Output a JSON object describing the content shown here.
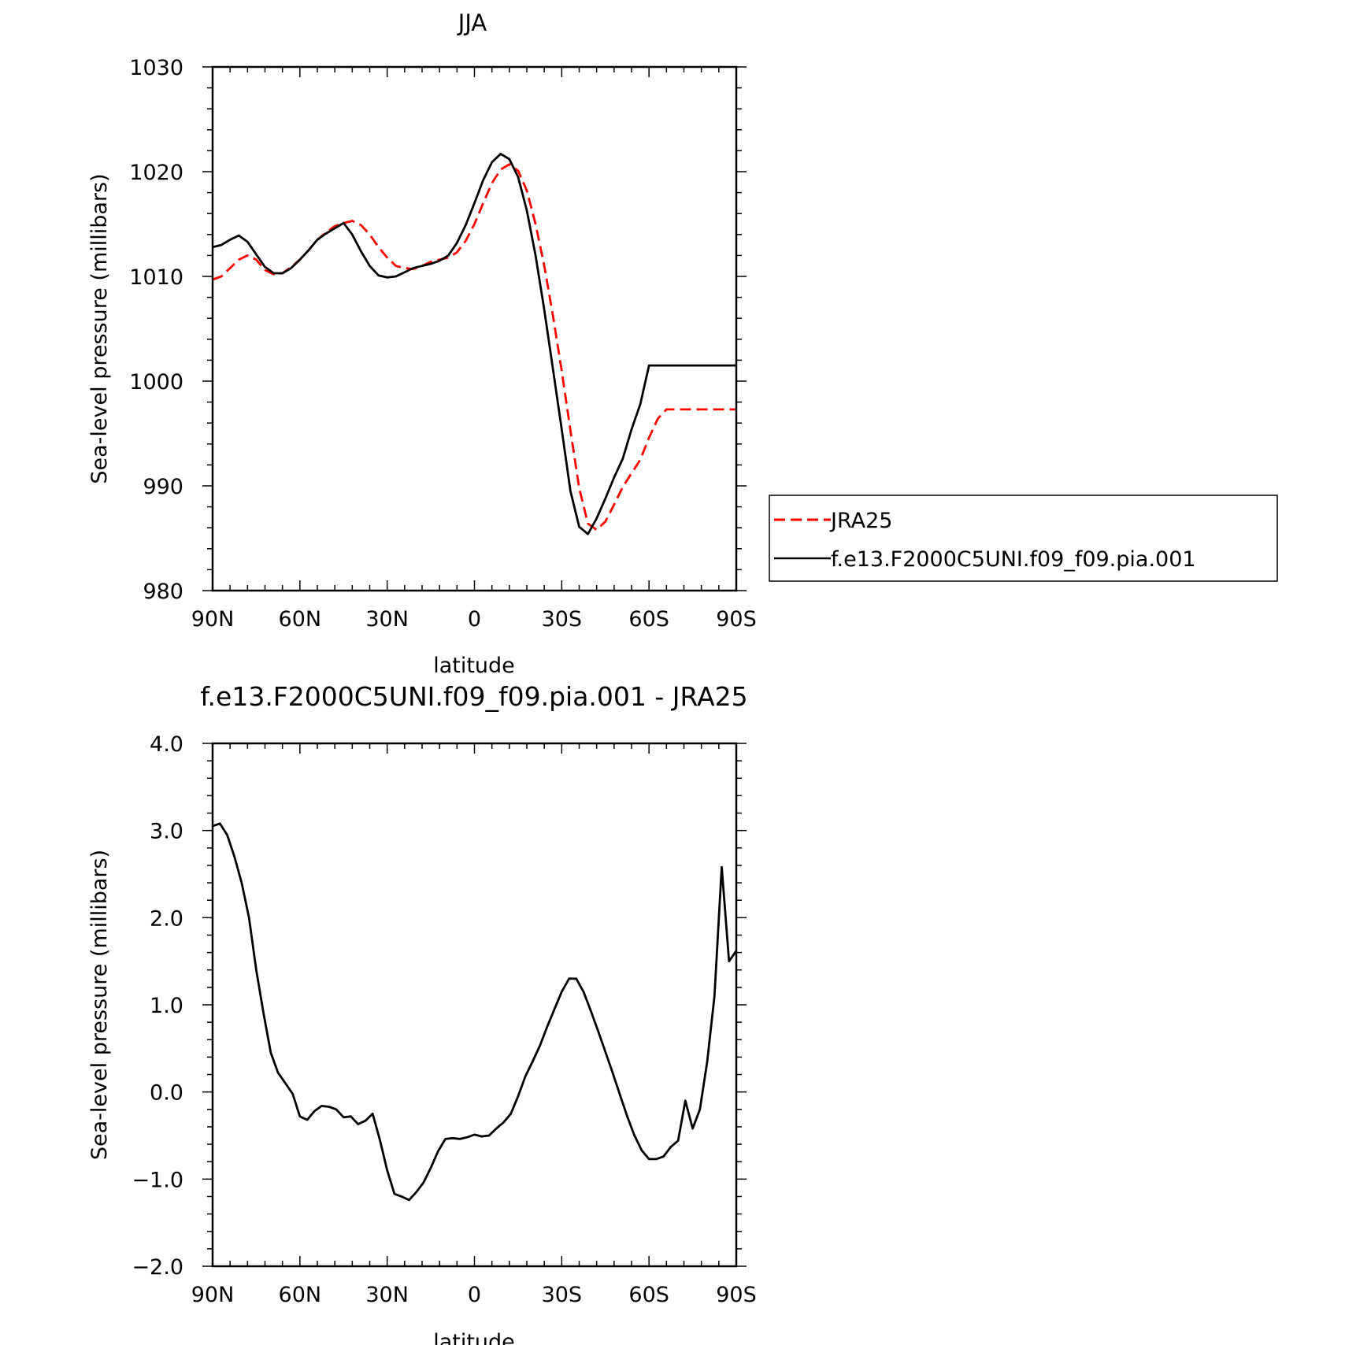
{
  "chart_data": [
    {
      "type": "line",
      "title": "JJA",
      "xlabel": "latitude",
      "ylabel": "Sea-level pressure (millibars)",
      "x_tick_labels": [
        "90N",
        "60N",
        "30N",
        "0",
        "30S",
        "60S",
        "90S"
      ],
      "x_tick_values": [
        90,
        60,
        30,
        0,
        -30,
        -60,
        -90
      ],
      "xlim": [
        90,
        -90
      ],
      "y_tick_labels": [
        "980",
        "990",
        "1000",
        "1010",
        "1020",
        "1030"
      ],
      "y_tick_values": [
        980,
        990,
        1000,
        1010,
        1020,
        1030
      ],
      "ylim": [
        980,
        1030
      ],
      "legend_position": "right",
      "series": [
        {
          "name": "JRA25",
          "color": "#ff0000",
          "dash": "dashed",
          "x": [
            90,
            87,
            84,
            81,
            78,
            75,
            72,
            69,
            66,
            63,
            60,
            57,
            54,
            51,
            48,
            45,
            42,
            39,
            36,
            33,
            30,
            27,
            24,
            21,
            18,
            15,
            12,
            9,
            6,
            3,
            0,
            -3,
            -6,
            -9,
            -12,
            -15,
            -18,
            -21,
            -24,
            -27,
            -30,
            -33,
            -36,
            -39,
            -42,
            -45,
            -48,
            -51,
            -54,
            -57,
            -60,
            -63,
            -66,
            -69,
            -72,
            -75,
            -78,
            -81,
            -84,
            -87,
            -90
          ],
          "y": [
            1009.7,
            1010.0,
            1010.8,
            1011.6,
            1012.0,
            1011.6,
            1010.6,
            1010.2,
            1010.3,
            1010.9,
            1011.6,
            1012.5,
            1013.5,
            1014.2,
            1014.8,
            1015.1,
            1015.3,
            1014.9,
            1014.0,
            1012.8,
            1011.8,
            1011.0,
            1010.8,
            1010.7,
            1011.0,
            1011.4,
            1011.6,
            1011.8,
            1012.3,
            1013.4,
            1015.0,
            1017.0,
            1018.9,
            1020.2,
            1020.7,
            1020.1,
            1018.2,
            1015.0,
            1011.0,
            1006.2,
            1001.0,
            995.3,
            989.8,
            986.4,
            985.8,
            986.6,
            988.2,
            989.9,
            991.2,
            992.5,
            994.6,
            996.4,
            997.3,
            997.3,
            997.3,
            997.3,
            997.3,
            997.3,
            997.3,
            997.3,
            997.3
          ]
        },
        {
          "name": "f.e13.F2000C5UNI.f09_f09.pia.001",
          "color": "#000000",
          "dash": "solid",
          "x": [
            90,
            87,
            84,
            81,
            78,
            75,
            72,
            69,
            66,
            63,
            60,
            57,
            54,
            51,
            48,
            45,
            42,
            39,
            36,
            33,
            30,
            27,
            24,
            21,
            18,
            15,
            12,
            9,
            6,
            3,
            0,
            -3,
            -6,
            -9,
            -12,
            -15,
            -18,
            -21,
            -24,
            -27,
            -30,
            -33,
            -36,
            -39,
            -42,
            -45,
            -48,
            -51,
            -54,
            -57,
            -60,
            -63,
            -66,
            -69,
            -72,
            -75,
            -78,
            -81,
            -84,
            -87,
            -90
          ],
          "y": [
            1012.8,
            1013.0,
            1013.5,
            1013.9,
            1013.3,
            1012.1,
            1010.9,
            1010.3,
            1010.3,
            1010.8,
            1011.6,
            1012.5,
            1013.5,
            1014.1,
            1014.6,
            1015.1,
            1014.0,
            1012.4,
            1011.0,
            1010.1,
            1009.9,
            1010.0,
            1010.4,
            1010.8,
            1011.0,
            1011.2,
            1011.5,
            1012.0,
            1013.2,
            1014.9,
            1017.0,
            1019.2,
            1020.9,
            1021.7,
            1021.2,
            1019.5,
            1016.3,
            1012.0,
            1006.8,
            1001.1,
            995.4,
            989.5,
            986.1,
            985.4,
            986.9,
            988.8,
            990.8,
            992.6,
            995.4,
            997.8,
            1001.5,
            1001.5,
            1001.5,
            1001.5,
            1001.5,
            1001.5,
            1001.5,
            1001.5,
            1001.5,
            1001.5,
            1001.5
          ]
        }
      ]
    },
    {
      "type": "line",
      "title": "f.e13.F2000C5UNI.f09_f09.pia.001 - JRA25",
      "xlabel": "latitude",
      "ylabel": "Sea-level pressure (millibars)",
      "x_tick_labels": [
        "90N",
        "60N",
        "30N",
        "0",
        "30S",
        "60S",
        "90S"
      ],
      "x_tick_values": [
        90,
        60,
        30,
        0,
        -30,
        -60,
        -90
      ],
      "xlim": [
        90,
        -90
      ],
      "y_tick_labels": [
        "−2.0",
        "−1.0",
        "0.0",
        "1.0",
        "2.0",
        "3.0",
        "4.0"
      ],
      "y_tick_values": [
        -2,
        -1,
        0,
        1,
        2,
        3,
        4
      ],
      "ylim": [
        -2,
        4
      ],
      "series": [
        {
          "color": "#000000",
          "dash": "solid",
          "x": [
            90,
            87.5,
            85,
            82.5,
            80,
            77.5,
            75,
            72.5,
            70,
            67.5,
            65,
            62.5,
            60,
            57.5,
            55,
            52.5,
            50,
            47.5,
            45,
            42.5,
            40,
            37.5,
            35,
            32.5,
            30,
            27.5,
            25,
            22.5,
            20,
            17.5,
            15,
            12.5,
            10,
            7.5,
            5,
            2.5,
            0,
            -2.5,
            -5,
            -7.5,
            -10,
            -12.5,
            -15,
            -17.5,
            -20,
            -22.5,
            -25,
            -27.5,
            -30,
            -32.5,
            -35,
            -37.5,
            -40,
            -42.5,
            -45,
            -47.5,
            -50,
            -52.5,
            -55,
            -57.5,
            -60,
            -62.5,
            -65,
            -67.5,
            -70,
            -72.5,
            -75,
            -77.5,
            -80,
            -82.5,
            -85,
            -87.5,
            -90
          ],
          "y": [
            3.05,
            3.08,
            2.95,
            2.7,
            2.4,
            2.0,
            1.4,
            0.9,
            0.45,
            0.22,
            0.1,
            -0.02,
            -0.28,
            -0.32,
            -0.22,
            -0.16,
            -0.17,
            -0.2,
            -0.29,
            -0.28,
            -0.37,
            -0.33,
            -0.25,
            -0.55,
            -0.9,
            -1.17,
            -1.2,
            -1.24,
            -1.15,
            -1.04,
            -0.87,
            -0.68,
            -0.54,
            -0.53,
            -0.54,
            -0.52,
            -0.49,
            -0.51,
            -0.5,
            -0.42,
            -0.35,
            -0.25,
            -0.05,
            0.18,
            0.35,
            0.53,
            0.75,
            0.95,
            1.15,
            1.3,
            1.3,
            1.15,
            0.93,
            0.7,
            0.46,
            0.22,
            -0.03,
            -0.28,
            -0.5,
            -0.67,
            -0.77,
            -0.77,
            -0.74,
            -0.63,
            -0.56,
            -0.1,
            -0.42,
            -0.2,
            0.35,
            1.1,
            2.58,
            1.5,
            1.62
          ]
        }
      ]
    }
  ]
}
